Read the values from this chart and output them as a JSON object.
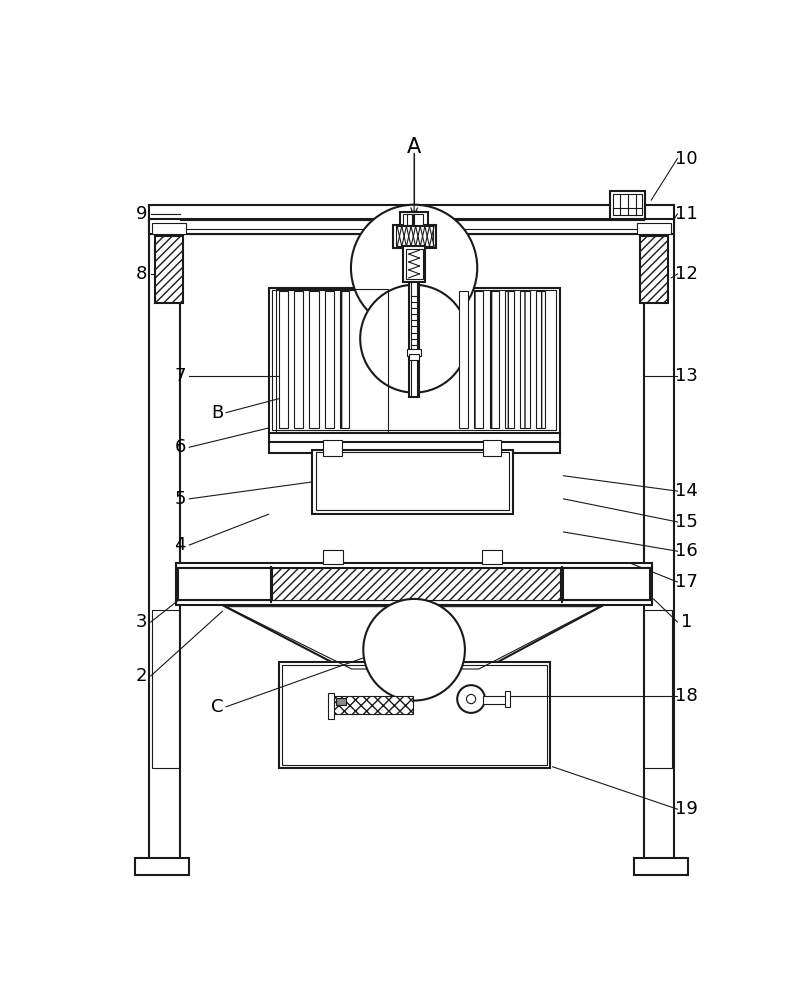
{
  "bg_color": "#ffffff",
  "line_color": "#1a1a1a",
  "lw_main": 1.5,
  "lw_thin": 0.8,
  "labels_left": [
    [
      "9",
      50,
      878
    ],
    [
      "8",
      50,
      800
    ],
    [
      "B",
      148,
      620
    ],
    [
      "7",
      100,
      668
    ],
    [
      "6",
      100,
      575
    ],
    [
      "5",
      100,
      508
    ],
    [
      "4",
      100,
      448
    ],
    [
      "3",
      50,
      348
    ],
    [
      "2",
      50,
      278
    ],
    [
      "C",
      148,
      238
    ]
  ],
  "labels_right": [
    [
      "10",
      758,
      950
    ],
    [
      "11",
      758,
      878
    ],
    [
      "12",
      758,
      800
    ],
    [
      "13",
      758,
      668
    ],
    [
      "14",
      758,
      518
    ],
    [
      "15",
      758,
      478
    ],
    [
      "16",
      758,
      440
    ],
    [
      "17",
      758,
      400
    ],
    [
      "1",
      758,
      348
    ],
    [
      "18",
      758,
      252
    ],
    [
      "19",
      758,
      105
    ]
  ],
  "label_A": [
    404,
    962
  ],
  "leader_lines": [
    [
      "9",
      62,
      878,
      100,
      878
    ],
    [
      "8",
      62,
      800,
      100,
      800
    ],
    [
      "B",
      160,
      620,
      228,
      638
    ],
    [
      "7",
      112,
      668,
      228,
      668
    ],
    [
      "6",
      112,
      575,
      215,
      600
    ],
    [
      "5",
      112,
      508,
      272,
      530
    ],
    [
      "4",
      112,
      448,
      215,
      488
    ],
    [
      "3",
      62,
      348,
      100,
      378
    ],
    [
      "2",
      62,
      278,
      155,
      362
    ],
    [
      "C",
      160,
      238,
      348,
      305
    ],
    [
      "10",
      746,
      950,
      712,
      896
    ],
    [
      "11",
      746,
      878,
      742,
      872
    ],
    [
      "12",
      746,
      800,
      738,
      795
    ],
    [
      "13",
      746,
      668,
      704,
      668
    ],
    [
      "14",
      746,
      518,
      598,
      538
    ],
    [
      "15",
      746,
      478,
      598,
      508
    ],
    [
      "16",
      746,
      440,
      598,
      465
    ],
    [
      "17",
      746,
      400,
      686,
      424
    ],
    [
      "1",
      746,
      348,
      715,
      378
    ],
    [
      "18",
      746,
      252,
      530,
      252
    ],
    [
      "19",
      746,
      105,
      584,
      160
    ]
  ]
}
